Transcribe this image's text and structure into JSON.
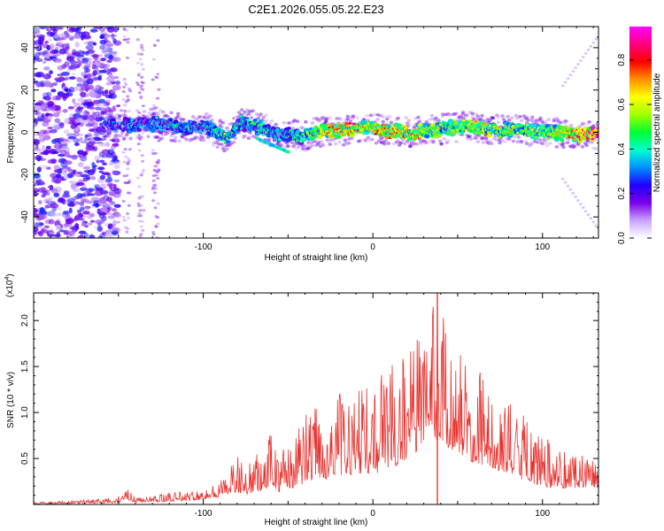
{
  "figure": {
    "title": "C2E1.2026.055.05.22.E23"
  },
  "chart_data": [
    {
      "type": "heatmap",
      "name": "spectrogram",
      "xlabel": "Height of straight line (km)",
      "ylabel": "Frequency (Hz)",
      "xlim": [
        -200,
        133
      ],
      "ylim": [
        -50,
        50
      ],
      "xticks": [
        -100,
        0,
        100
      ],
      "yticks": [
        -40,
        -20,
        0,
        20,
        40
      ],
      "colorbar": {
        "label": "Normalized spectral amplitude",
        "range": [
          0,
          0.95
        ],
        "ticks": [
          "0.0",
          "0.2",
          "0.4",
          "0.6",
          "0.8"
        ],
        "colors": [
          "#ffffff",
          "#c9a3ff",
          "#7a00e6",
          "#2000ff",
          "#0090ff",
          "#00ffd0",
          "#00ff30",
          "#a0ff00",
          "#ffff00",
          "#ff9000",
          "#ff0000",
          "#ff0080",
          "#ff00ff"
        ]
      },
      "ridge": {
        "x": [
          -155,
          -145,
          -130,
          -120,
          -110,
          -100,
          -92,
          -85,
          -78,
          -70,
          -62,
          -55,
          -48,
          -42,
          -35,
          -25,
          -15,
          -5,
          5,
          15,
          25,
          35,
          45,
          55,
          65,
          75,
          85,
          95,
          105,
          115,
          125,
          133
        ],
        "freq": [
          4,
          3,
          4,
          3,
          2,
          3,
          0,
          -3,
          5,
          3,
          1,
          -2,
          0,
          -3,
          0,
          1,
          1,
          3,
          1,
          0,
          0,
          1,
          2,
          3,
          2,
          1,
          2,
          0,
          0,
          -1,
          -1,
          -1
        ],
        "amplitude": [
          0.25,
          0.3,
          0.3,
          0.35,
          0.35,
          0.3,
          0.45,
          0.5,
          0.35,
          0.4,
          0.4,
          0.35,
          0.4,
          0.45,
          0.6,
          0.75,
          0.8,
          0.7,
          0.8,
          0.75,
          0.7,
          0.6,
          0.55,
          0.6,
          0.65,
          0.6,
          0.6,
          0.55,
          0.6,
          0.75,
          0.92,
          0.95
        ]
      }
    },
    {
      "type": "line",
      "name": "snr",
      "xlabel": "Height of straight line (km)",
      "ylabel": "SNR (10 * v/v)",
      "yscale_label": "(x10",
      "yscale_exp": "4",
      "xlim": [
        -200,
        133
      ],
      "ylim": [
        0,
        23000
      ],
      "xticks": [
        -100,
        0,
        100
      ],
      "yticks": [
        "0.5",
        "1.0",
        "1.5",
        "2.0"
      ],
      "ytick_values": [
        5000,
        10000,
        15000,
        20000
      ],
      "color": "#e8322e",
      "series": [
        {
          "x": [
            -200,
            -190,
            -180,
            -170,
            -160,
            -150,
            -145,
            -140,
            -130,
            -120,
            -110,
            -100,
            -90,
            -85,
            -80,
            -75,
            -70,
            -65,
            -60,
            -55,
            -50,
            -45,
            -40,
            -35,
            -30,
            -25,
            -20,
            -15,
            -10,
            -5,
            0,
            5,
            10,
            15,
            20,
            25,
            30,
            35,
            40,
            45,
            50,
            55,
            60,
            65,
            70,
            75,
            80,
            85,
            90,
            95,
            100,
            105,
            110,
            115,
            120,
            125,
            133
          ],
          "base": [
            150,
            150,
            200,
            250,
            300,
            400,
            1200,
            500,
            600,
            700,
            900,
            1200,
            1800,
            2500,
            3000,
            2500,
            2800,
            3500,
            4500,
            3000,
            3200,
            4500,
            5000,
            6000,
            6500,
            5800,
            7000,
            7500,
            6800,
            8000,
            7000,
            8000,
            9000,
            9500,
            11000,
            12500,
            14000,
            15000,
            16000,
            13500,
            12500,
            11000,
            10000,
            9500,
            9000,
            8000,
            7500,
            6500,
            5500,
            5000,
            4500,
            4000,
            4000,
            3800,
            4000,
            4200,
            4000
          ],
          "peak": [
            300,
            300,
            400,
            500,
            600,
            900,
            1700,
            900,
            1000,
            1200,
            1500,
            1800,
            2500,
            3800,
            5300,
            4000,
            5000,
            6500,
            8700,
            6000,
            6500,
            8000,
            10000,
            11000,
            11000,
            10500,
            12000,
            13500,
            12000,
            14000,
            12500,
            14500,
            15500,
            16000,
            17500,
            19000,
            20000,
            21500,
            23000,
            18000,
            17000,
            16000,
            15000,
            14000,
            13000,
            12000,
            11000,
            10500,
            9500,
            8000,
            7500,
            7000,
            6500,
            6000,
            6000,
            6000,
            5500
          ]
        }
      ]
    }
  ]
}
